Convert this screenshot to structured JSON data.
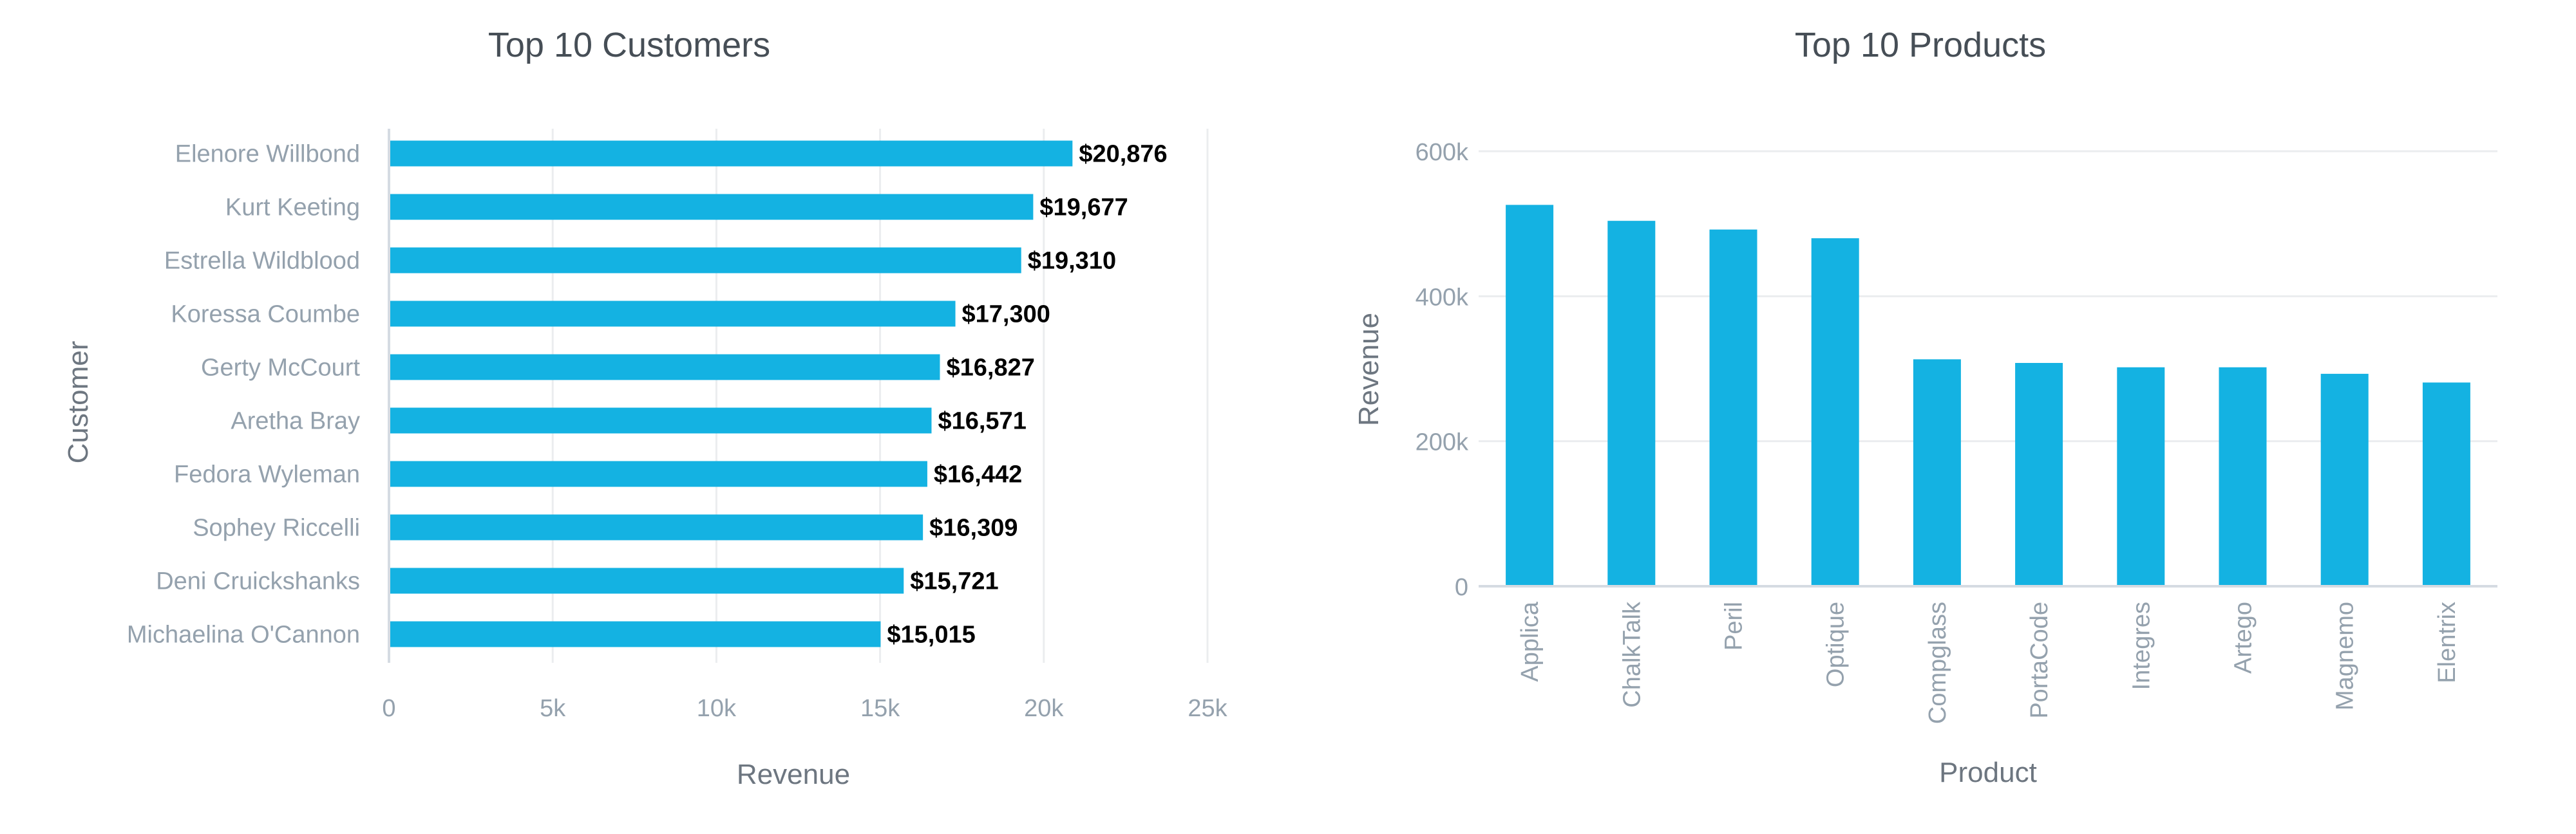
{
  "colors": {
    "bar": "#14b2e2"
  },
  "chart_data": [
    {
      "type": "bar",
      "orientation": "horizontal",
      "title": "Top 10 Customers",
      "xlabel": "Revenue",
      "ylabel": "Customer",
      "categories": [
        "Elenore Willbond",
        "Kurt Keeting",
        "Estrella Wildblood",
        "Koressa Coumbe",
        "Gerty McCourt",
        "Aretha Bray",
        "Fedora Wyleman",
        "Sophey Riccelli",
        "Deni Cruickshanks",
        "Michaelina O'Cannon"
      ],
      "values": [
        20876,
        19677,
        19310,
        17300,
        16827,
        16571,
        16442,
        16309,
        15721,
        15015
      ],
      "data_labels": [
        "$20,876",
        "$19,677",
        "$19,310",
        "$17,300",
        "$16,827",
        "$16,571",
        "$16,442",
        "$16,309",
        "$15,721",
        "$15,015"
      ],
      "xlim": [
        0,
        25000
      ],
      "ticks": [
        0,
        5000,
        10000,
        15000,
        20000,
        25000
      ],
      "tick_labels": [
        "0",
        "5k",
        "10k",
        "15k",
        "20k",
        "25k"
      ],
      "grid": true,
      "legend": "none"
    },
    {
      "type": "bar",
      "orientation": "vertical",
      "title": "Top 10 Products",
      "xlabel": "Product",
      "ylabel": "Revenue",
      "categories": [
        "Applica",
        "ChalkTalk",
        "Peril",
        "Optique",
        "Compglass",
        "PortaCode",
        "Integres",
        "Artego",
        "Magnemo",
        "Elentrix"
      ],
      "values": [
        526000,
        504000,
        492000,
        480000,
        313000,
        308000,
        302000,
        302000,
        293000,
        281000
      ],
      "ylim": [
        0,
        600000
      ],
      "ticks": [
        0,
        200000,
        400000,
        600000
      ],
      "tick_labels": [
        "0",
        "200k",
        "400k",
        "600k"
      ],
      "grid": true,
      "legend": "none"
    }
  ]
}
